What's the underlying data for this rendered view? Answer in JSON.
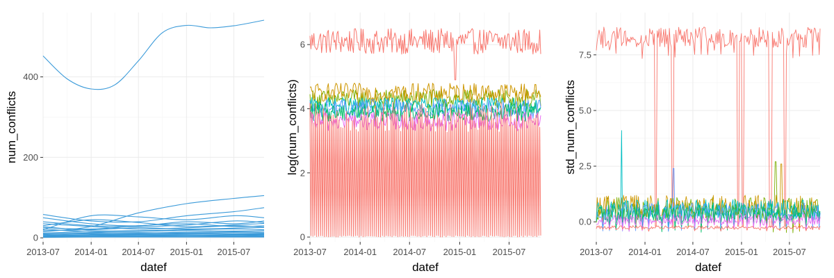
{
  "chart_data": [
    {
      "type": "line",
      "title": "",
      "xlabel": "datef",
      "ylabel": "num_conflicts",
      "x_ticks": [
        "2013-07",
        "2014-01",
        "2014-07",
        "2015-01",
        "2015-07"
      ],
      "x_range": [
        "2013-07-01",
        "2015-10-25"
      ],
      "y_ticks": [
        0,
        200,
        400
      ],
      "ylim": [
        -10,
        560
      ],
      "grid": true,
      "legend": "none",
      "series_color": "#3a9ad9",
      "style": "smoothed",
      "series": [
        {
          "x": [
            "2013-07-01",
            "2013-10-01",
            "2014-01-01",
            "2014-04-01",
            "2014-07-01",
            "2014-10-01",
            "2015-01-01",
            "2015-04-01",
            "2015-07-01",
            "2015-10-25"
          ],
          "values": [
            452,
            395,
            370,
            380,
            440,
            510,
            528,
            522,
            527,
            541
          ]
        },
        {
          "x": [
            "2013-07-01",
            "2014-01-01",
            "2014-07-01",
            "2015-01-01",
            "2015-07-01",
            "2015-10-25"
          ],
          "values": [
            15,
            28,
            62,
            85,
            98,
            105
          ]
        },
        {
          "x": [
            "2013-07-01",
            "2014-01-01",
            "2014-07-01",
            "2015-01-01",
            "2015-07-01",
            "2015-10-25"
          ],
          "values": [
            58,
            42,
            40,
            55,
            65,
            75
          ]
        },
        {
          "x": [
            "2013-07-01",
            "2014-01-01",
            "2014-07-01",
            "2015-01-01",
            "2015-07-01",
            "2015-10-25"
          ],
          "values": [
            20,
            55,
            52,
            45,
            55,
            50
          ]
        },
        {
          "x": [
            "2013-07-01",
            "2014-01-01",
            "2014-07-01",
            "2015-01-01",
            "2015-07-01",
            "2015-10-25"
          ],
          "values": [
            50,
            35,
            30,
            40,
            35,
            42
          ]
        },
        {
          "x": [
            "2013-07-01",
            "2014-01-01",
            "2014-07-01",
            "2015-01-01",
            "2015-07-01",
            "2015-10-25"
          ],
          "values": [
            30,
            45,
            38,
            28,
            32,
            36
          ]
        },
        {
          "x": [
            "2013-07-01",
            "2014-01-01",
            "2014-07-01",
            "2015-01-01",
            "2015-07-01",
            "2015-10-25"
          ],
          "values": [
            40,
            30,
            28,
            32,
            42,
            38
          ]
        },
        {
          "x": [
            "2013-07-01",
            "2014-01-01",
            "2014-07-01",
            "2015-01-01",
            "2015-07-01",
            "2015-10-25"
          ],
          "values": [
            25,
            22,
            30,
            35,
            28,
            30
          ]
        },
        {
          "x": [
            "2013-07-01",
            "2014-01-01",
            "2014-07-01",
            "2015-01-01",
            "2015-07-01",
            "2015-10-25"
          ],
          "values": [
            35,
            28,
            22,
            25,
            30,
            27
          ]
        },
        {
          "x": [
            "2013-07-01",
            "2014-01-01",
            "2014-07-01",
            "2015-01-01",
            "2015-07-01",
            "2015-10-25"
          ],
          "values": [
            18,
            20,
            25,
            22,
            24,
            26
          ]
        },
        {
          "x": [
            "2013-07-01",
            "2014-01-01",
            "2014-07-01",
            "2015-01-01",
            "2015-07-01",
            "2015-10-25"
          ],
          "values": [
            28,
            18,
            18,
            20,
            22,
            20
          ]
        },
        {
          "x": [
            "2013-07-01",
            "2014-01-01",
            "2014-07-01",
            "2015-01-01",
            "2015-07-01",
            "2015-10-25"
          ],
          "values": [
            12,
            15,
            16,
            18,
            17,
            18
          ]
        },
        {
          "x": [
            "2013-07-01",
            "2014-01-01",
            "2014-07-01",
            "2015-01-01",
            "2015-07-01",
            "2015-10-25"
          ],
          "values": [
            22,
            14,
            12,
            14,
            15,
            14
          ]
        },
        {
          "x": [
            "2013-07-01",
            "2014-01-01",
            "2014-07-01",
            "2015-01-01",
            "2015-07-01",
            "2015-10-25"
          ],
          "values": [
            10,
            12,
            13,
            12,
            13,
            12
          ]
        },
        {
          "x": [
            "2013-07-01",
            "2014-01-01",
            "2014-07-01",
            "2015-01-01",
            "2015-07-01",
            "2015-10-25"
          ],
          "values": [
            8,
            10,
            10,
            11,
            10,
            10
          ]
        },
        {
          "x": [
            "2013-07-01",
            "2014-01-01",
            "2014-07-01",
            "2015-01-01",
            "2015-07-01",
            "2015-10-25"
          ],
          "values": [
            6,
            8,
            8,
            9,
            8,
            8
          ]
        },
        {
          "x": [
            "2013-07-01",
            "2014-01-01",
            "2014-07-01",
            "2015-01-01",
            "2015-07-01",
            "2015-10-25"
          ],
          "values": [
            5,
            6,
            7,
            7,
            6,
            7
          ]
        },
        {
          "x": [
            "2013-07-01",
            "2014-01-01",
            "2014-07-01",
            "2015-01-01",
            "2015-07-01",
            "2015-10-25"
          ],
          "values": [
            4,
            5,
            5,
            6,
            5,
            5
          ]
        },
        {
          "x": [
            "2013-07-01",
            "2014-01-01",
            "2014-07-01",
            "2015-01-01",
            "2015-07-01",
            "2015-10-25"
          ],
          "values": [
            3,
            4,
            4,
            4,
            4,
            4
          ]
        },
        {
          "x": [
            "2013-07-01",
            "2014-01-01",
            "2014-07-01",
            "2015-01-01",
            "2015-07-01",
            "2015-10-25"
          ],
          "values": [
            2,
            3,
            3,
            3,
            3,
            3
          ]
        },
        {
          "x": [
            "2013-07-01",
            "2014-01-01",
            "2014-07-01",
            "2015-01-01",
            "2015-07-01",
            "2015-10-25"
          ],
          "values": [
            1,
            2,
            2,
            2,
            2,
            2
          ]
        }
      ]
    },
    {
      "type": "line",
      "title": "",
      "xlabel": "datef",
      "ylabel": "log(num_conflicts)",
      "x_ticks": [
        "2013-07",
        "2014-01",
        "2014-07",
        "2015-01",
        "2015-07"
      ],
      "x_range": [
        "2013-07-01",
        "2015-10-25"
      ],
      "y_ticks": [
        0,
        2,
        4,
        6
      ],
      "ylim": [
        -0.15,
        7.0
      ],
      "grid": true,
      "legend": "none",
      "series": [
        {
          "color": "#f8766d",
          "level": 6.1,
          "amplitude": 0.4,
          "dips": [
            [
              "2014-12-15",
              4.9
            ]
          ]
        },
        {
          "color": "#7cae00",
          "level": 4.3,
          "amplitude": 0.3
        },
        {
          "color": "#cd9600",
          "level": 4.5,
          "amplitude": 0.3
        },
        {
          "color": "#00bfc4",
          "level": 4.1,
          "amplitude": 0.25
        },
        {
          "color": "#619cff",
          "level": 4.0,
          "amplitude": 0.3
        },
        {
          "color": "#00be67",
          "level": 3.9,
          "amplitude": 0.3
        },
        {
          "color": "#e76bf3",
          "level": 3.6,
          "amplitude": 0.3
        },
        {
          "color": "#f8766d",
          "level": 2.6,
          "amplitude": 1.6
        }
      ]
    },
    {
      "type": "line",
      "title": "",
      "xlabel": "datef",
      "ylabel": "std_num_conflicts",
      "x_ticks": [
        "2013-07",
        "2014-01",
        "2014-07",
        "2015-01",
        "2015-07"
      ],
      "x_range": [
        "2013-07-01",
        "2015-10-25"
      ],
      "y_ticks": [
        0.0,
        2.5,
        5.0,
        7.5
      ],
      "y_tick_labels": [
        "0.0",
        "2.5",
        "5.0",
        "7.5"
      ],
      "ylim": [
        -0.9,
        9.4
      ],
      "grid": true,
      "legend": "none",
      "series": [
        {
          "color": "#f8766d",
          "level": 8.3,
          "amplitude": 0.45,
          "dips": [
            [
              "2014-02-10",
              -0.2
            ],
            [
              "2014-04-15",
              -0.2
            ],
            [
              "2014-12-20",
              -0.2
            ],
            [
              "2015-01-05",
              -0.2
            ],
            [
              "2015-04-20",
              -0.2
            ],
            [
              "2015-06-15",
              -0.2
            ]
          ]
        },
        {
          "color": "#7cae00",
          "level": 0.6,
          "amplitude": 0.5,
          "spikes": [
            [
              "2015-05-10",
              2.7
            ]
          ]
        },
        {
          "color": "#cd9600",
          "level": 0.7,
          "amplitude": 0.5,
          "spikes": [
            [
              "2015-06-01",
              2.6
            ]
          ]
        },
        {
          "color": "#00bfc4",
          "level": 0.55,
          "amplitude": 0.45,
          "spikes": [
            [
              "2013-10-05",
              4.1
            ]
          ]
        },
        {
          "color": "#619cff",
          "level": 0.45,
          "amplitude": 0.4,
          "spikes": [
            [
              "2014-04-20",
              2.4
            ]
          ]
        },
        {
          "color": "#00be67",
          "level": 0.4,
          "amplitude": 0.4
        },
        {
          "color": "#e76bf3",
          "level": 0.1,
          "amplitude": 0.25
        },
        {
          "color": "#f8766d",
          "level": -0.25,
          "amplitude": 0.08
        }
      ]
    }
  ]
}
